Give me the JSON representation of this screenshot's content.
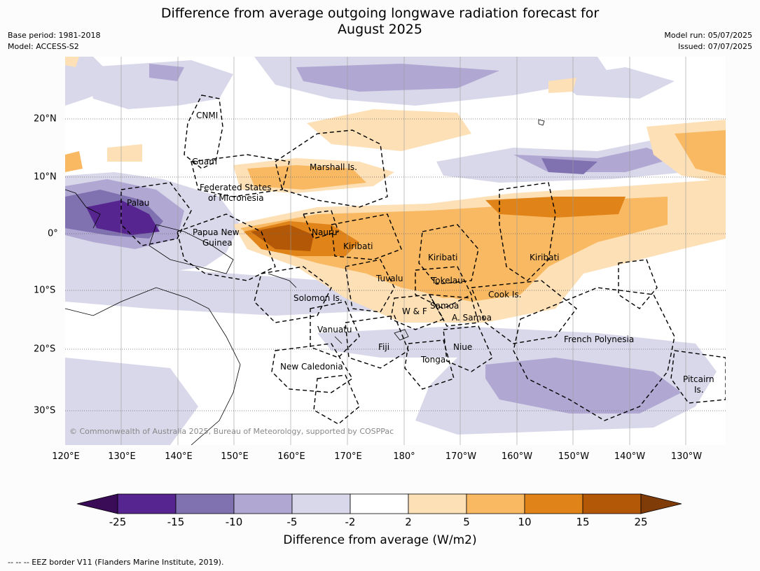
{
  "title_line1": "Difference from average outgoing longwave radiation forecast for",
  "title_line2": "August 2025",
  "meta_left": [
    "Base period: 1981-2018",
    "Model: ACCESS-S2"
  ],
  "meta_right": [
    "Model run: 05/07/2025",
    "Issued: 07/07/2025"
  ],
  "lon_labels": [
    "120°E",
    "130°E",
    "140°E",
    "150°E",
    "160°E",
    "170°E",
    "180°",
    "170°W",
    "160°W",
    "150°W",
    "140°W",
    "130°W"
  ],
  "lat_labels": [
    "20°N",
    "10°N",
    "0°",
    "10°S",
    "20°S",
    "30°S"
  ],
  "region_labels": [
    {
      "text": "CNMI"
    },
    {
      "text": "Guam"
    },
    {
      "text": "Marshall Is."
    },
    {
      "text": "Federated States"
    },
    {
      "text": "of Micronesia"
    },
    {
      "text": "Palau"
    },
    {
      "text": "Papua New"
    },
    {
      "text": "Guinea"
    },
    {
      "text": "Nauru"
    },
    {
      "text": "Kiribati"
    },
    {
      "text": "Kiribati"
    },
    {
      "text": "Kiribati"
    },
    {
      "text": "Tuvalu"
    },
    {
      "text": "Tokelau"
    },
    {
      "text": "Cook Is."
    },
    {
      "text": "Solomon Is."
    },
    {
      "text": "Samoa"
    },
    {
      "text": "W & F"
    },
    {
      "text": "A. Samoa"
    },
    {
      "text": "Vanuatu"
    },
    {
      "text": "Fiji"
    },
    {
      "text": "Niue"
    },
    {
      "text": "Tonga"
    },
    {
      "text": "French Polynesia"
    },
    {
      "text": "New Caledonia"
    },
    {
      "text": "Pitcairn"
    },
    {
      "text": "Is."
    }
  ],
  "copyright": "© Commonwealth of Australia 2025, Bureau of Meteorology, supported by COSPPac",
  "colorbar": {
    "ticks": [
      "-25",
      "-15",
      "-10",
      "-5",
      "-2",
      "2",
      "5",
      "10",
      "15",
      "25"
    ],
    "colors": [
      "#3a0c58",
      "#57258f",
      "#8072b0",
      "#b0a8d3",
      "#d9d8ea",
      "#ffffff",
      "#fde0b6",
      "#f9b862",
      "#e08318",
      "#b35806",
      "#7f3b08"
    ],
    "label": "Difference from average (W/m2)"
  },
  "footnote": "--  --  -- EEZ border V11 (Flanders Marine Institute, 2019)."
}
